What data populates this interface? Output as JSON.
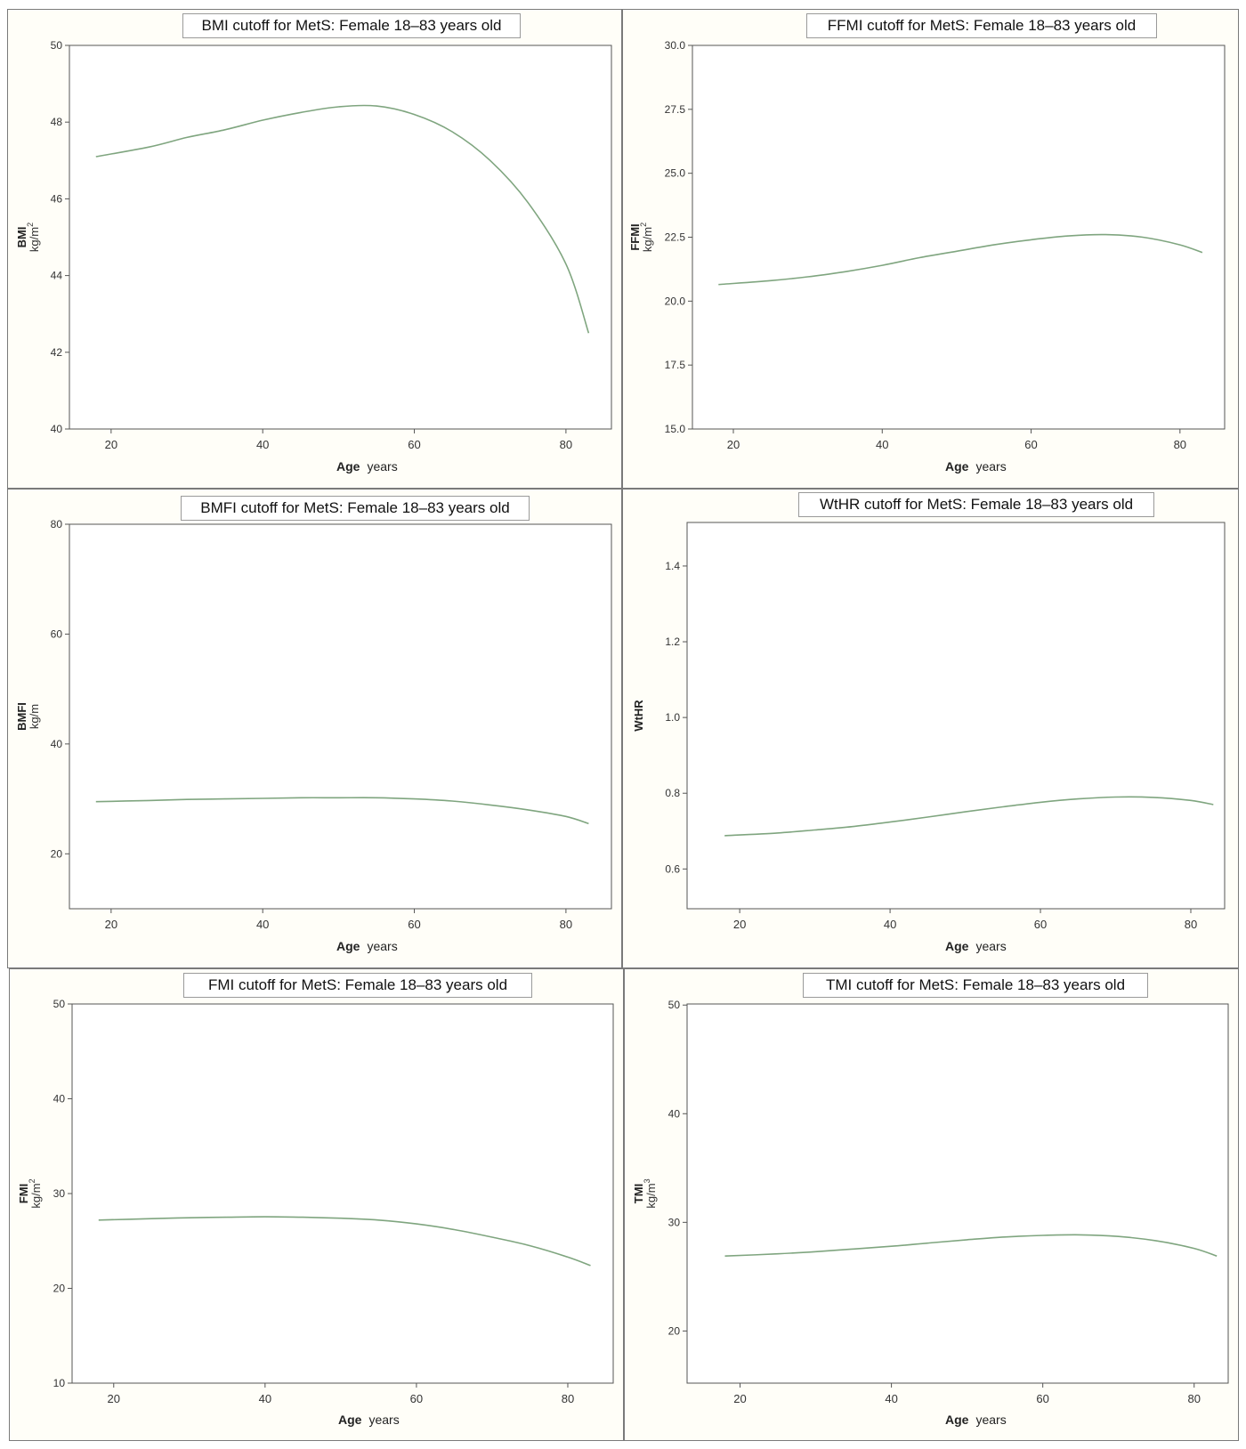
{
  "chart_data": [
    {
      "type": "line",
      "title": "BMI cutoff for MetS: Female 18–83 years old",
      "ylabel": "BMI",
      "yunit": "kg/m",
      "yunit_sup": "2",
      "xlabel": "Age",
      "xunit": "years",
      "xlim": [
        14.5,
        86
      ],
      "ylim": [
        40,
        50
      ],
      "xticks": [
        20,
        40,
        60,
        80
      ],
      "yticks": [
        40,
        42,
        44,
        46,
        48,
        50
      ],
      "ytick_labels": [
        "40",
        "42",
        "44",
        "46",
        "48",
        "50"
      ],
      "grid": false,
      "line_color": "#7fa57f",
      "x": [
        18,
        25,
        30,
        35,
        40,
        45,
        50,
        55,
        60,
        65,
        70,
        75,
        80,
        83
      ],
      "y": [
        47.1,
        47.35,
        47.6,
        47.8,
        48.05,
        48.25,
        48.4,
        48.42,
        48.2,
        47.75,
        47.0,
        45.9,
        44.3,
        42.5
      ]
    },
    {
      "type": "line",
      "title": "FFMI cutoff for MetS: Female 18–83 years old",
      "ylabel": "FFMI",
      "yunit": "kg/m",
      "yunit_sup": "2",
      "xlabel": "Age",
      "xunit": "years",
      "xlim": [
        14.5,
        86
      ],
      "ylim": [
        15,
        30
      ],
      "xticks": [
        20,
        40,
        60,
        80
      ],
      "yticks": [
        15,
        17.5,
        20,
        22.5,
        25,
        27.5,
        30
      ],
      "ytick_labels": [
        "15.0",
        "17.5",
        "20.0",
        "22.5",
        "25.0",
        "27.5",
        "30.0"
      ],
      "grid": false,
      "line_color": "#7fa57f",
      "x": [
        18,
        25,
        30,
        35,
        40,
        45,
        50,
        55,
        60,
        65,
        70,
        75,
        80,
        83
      ],
      "y": [
        20.65,
        20.8,
        20.95,
        21.15,
        21.4,
        21.7,
        21.95,
        22.2,
        22.4,
        22.55,
        22.6,
        22.5,
        22.2,
        21.9
      ]
    },
    {
      "type": "line",
      "title": "BMFI cutoff for MetS: Female 18–83 years old",
      "ylabel": "BMFI",
      "yunit": "kg/m",
      "yunit_sup": "",
      "xlabel": "Age",
      "xunit": "years",
      "xlim": [
        14.5,
        86
      ],
      "ylim": [
        10,
        80
      ],
      "xticks": [
        20,
        40,
        60,
        80
      ],
      "yticks": [
        20,
        40,
        60,
        80
      ],
      "ytick_labels": [
        "20",
        "40",
        "60",
        "80"
      ],
      "grid": false,
      "line_color": "#7fa57f",
      "x": [
        18,
        25,
        30,
        35,
        40,
        45,
        50,
        55,
        60,
        65,
        70,
        75,
        80,
        83
      ],
      "y": [
        29.5,
        29.7,
        29.9,
        30.0,
        30.1,
        30.2,
        30.2,
        30.2,
        30.0,
        29.6,
        28.9,
        28.0,
        26.8,
        25.5
      ]
    },
    {
      "type": "line",
      "title": "WtHR cutoff for MetS: Female 18–83 years old",
      "ylabel": "WtHR",
      "yunit": "",
      "yunit_sup": "",
      "xlabel": "Age",
      "xunit": "years",
      "xlim": [
        13,
        84.5
      ],
      "ylim": [
        0.495,
        1.515
      ],
      "xticks": [
        20,
        40,
        60,
        80
      ],
      "yticks": [
        0.6,
        0.8,
        1.0,
        1.2,
        1.4
      ],
      "ytick_labels": [
        "0.6",
        "0.8",
        "1.0",
        "1.2",
        "1.4"
      ],
      "grid": false,
      "line_color": "#7fa57f",
      "x": [
        18,
        25,
        30,
        35,
        40,
        45,
        50,
        55,
        60,
        65,
        70,
        75,
        80,
        83
      ],
      "y": [
        0.688,
        0.695,
        0.703,
        0.712,
        0.724,
        0.737,
        0.751,
        0.764,
        0.776,
        0.785,
        0.79,
        0.789,
        0.781,
        0.77
      ]
    },
    {
      "type": "line",
      "title": "FMI cutoff for MetS: Female 18–83 years old",
      "ylabel": "FMI",
      "yunit": "kg/m",
      "yunit_sup": "2",
      "xlabel": "Age",
      "xunit": "years",
      "xlim": [
        14.5,
        86
      ],
      "ylim": [
        10,
        50
      ],
      "xticks": [
        20,
        40,
        60,
        80
      ],
      "yticks": [
        10,
        20,
        30,
        40,
        50
      ],
      "ytick_labels": [
        "10",
        "20",
        "30",
        "40",
        "50"
      ],
      "grid": false,
      "line_color": "#7fa57f",
      "x": [
        18,
        25,
        30,
        35,
        40,
        45,
        50,
        55,
        60,
        65,
        70,
        75,
        80,
        83
      ],
      "y": [
        27.2,
        27.35,
        27.45,
        27.5,
        27.55,
        27.5,
        27.4,
        27.2,
        26.8,
        26.2,
        25.4,
        24.5,
        23.3,
        22.4
      ]
    },
    {
      "type": "line",
      "title": "TMI cutoff for MetS: Female 18–83 years old",
      "ylabel": "TMI",
      "yunit": "kg/m",
      "yunit_sup": "3",
      "xlabel": "Age",
      "xunit": "years",
      "xlim": [
        13,
        84.5
      ],
      "ylim": [
        15.2,
        50.1
      ],
      "xticks": [
        20,
        40,
        60,
        80
      ],
      "yticks": [
        20,
        30,
        40,
        50
      ],
      "ytick_labels": [
        "20",
        "30",
        "40",
        "50"
      ],
      "grid": false,
      "line_color": "#7fa57f",
      "x": [
        18,
        25,
        30,
        35,
        40,
        45,
        50,
        55,
        60,
        65,
        70,
        75,
        80,
        83
      ],
      "y": [
        26.9,
        27.1,
        27.3,
        27.55,
        27.8,
        28.1,
        28.4,
        28.65,
        28.8,
        28.85,
        28.7,
        28.3,
        27.6,
        26.9
      ]
    }
  ]
}
